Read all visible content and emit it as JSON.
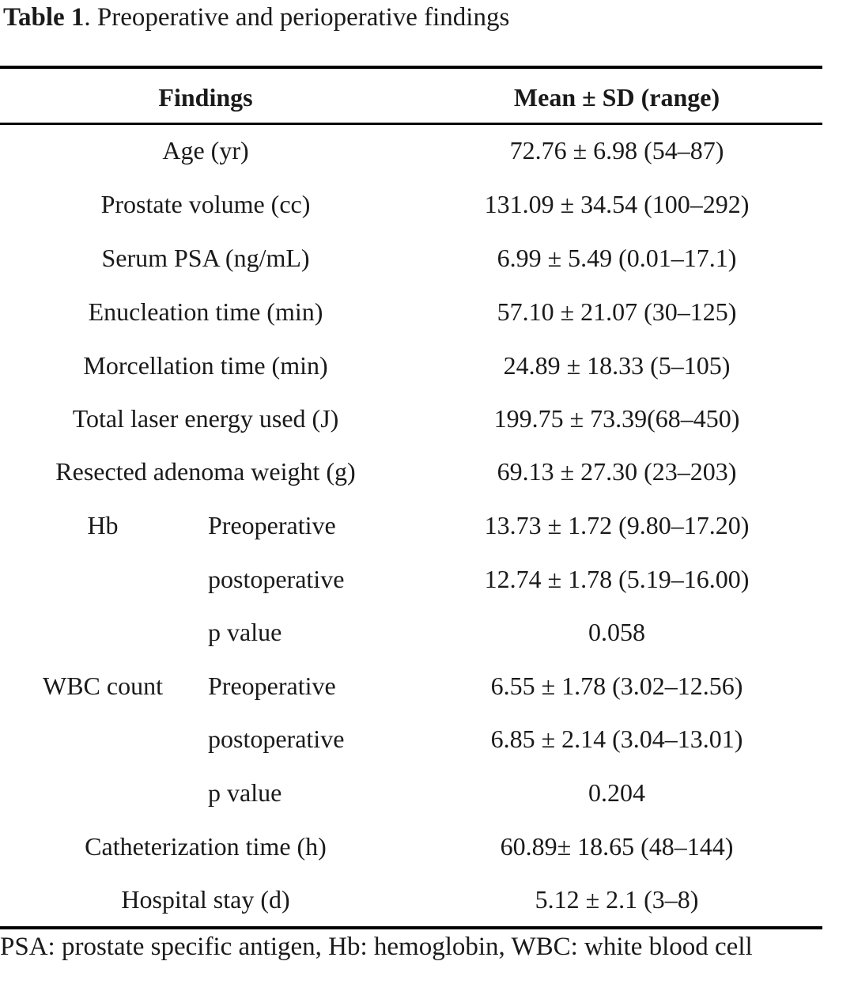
{
  "caption": {
    "label": "Table 1",
    "text": ". Preoperative and perioperative findings"
  },
  "table": {
    "headers": {
      "findings": "Findings",
      "value": "Mean ± SD (range)"
    },
    "rows": {
      "age": {
        "finding": "Age (yr)",
        "value": "72.76 ± 6.98 (54–87)"
      },
      "prostate_volume": {
        "finding": "Prostate volume (cc)",
        "value": "131.09 ± 34.54 (100–292)"
      },
      "serum_psa": {
        "finding": "Serum PSA (ng/mL)",
        "value": "6.99 ± 5.49 (0.01–17.1)"
      },
      "enucleation_time": {
        "finding": "Enucleation time (min)",
        "value": "57.10 ± 21.07 (30–125)"
      },
      "morcellation_time": {
        "finding": "Morcellation time (min)",
        "value": "24.89 ± 18.33 (5–105)"
      },
      "laser_energy": {
        "finding": "Total laser energy used (J)",
        "value": "199.75 ± 73.39(68–450)"
      },
      "adenoma_weight": {
        "finding": "Resected adenoma weight (g)",
        "value": "69.13 ± 27.30 (23–203)"
      },
      "catheterization_time": {
        "finding": "Catheterization time (h)",
        "value": "60.89± 18.65 (48–144)"
      },
      "hospital_stay": {
        "finding": "Hospital stay (d)",
        "value": "5.12 ± 2.1 (3–8)"
      }
    },
    "hb": {
      "group": "Hb",
      "preoperative": {
        "label": "Preoperative",
        "value": "13.73 ± 1.72 (9.80–17.20)"
      },
      "postoperative": {
        "label": "postoperative",
        "value": "12.74 ± 1.78 (5.19–16.00)"
      },
      "p_value": {
        "label": "p value",
        "value": "0.058"
      }
    },
    "wbc": {
      "group": "WBC count",
      "preoperative": {
        "label": "Preoperative",
        "value": "6.55 ± 1.78 (3.02–12.56)"
      },
      "postoperative": {
        "label": "postoperative",
        "value": "6.85 ± 2.14 (3.04–13.01)"
      },
      "p_value": {
        "label": "p value",
        "value": "0.204"
      }
    }
  },
  "footnote": "PSA: prostate specific antigen, Hb: hemoglobin, WBC: white blood cell"
}
